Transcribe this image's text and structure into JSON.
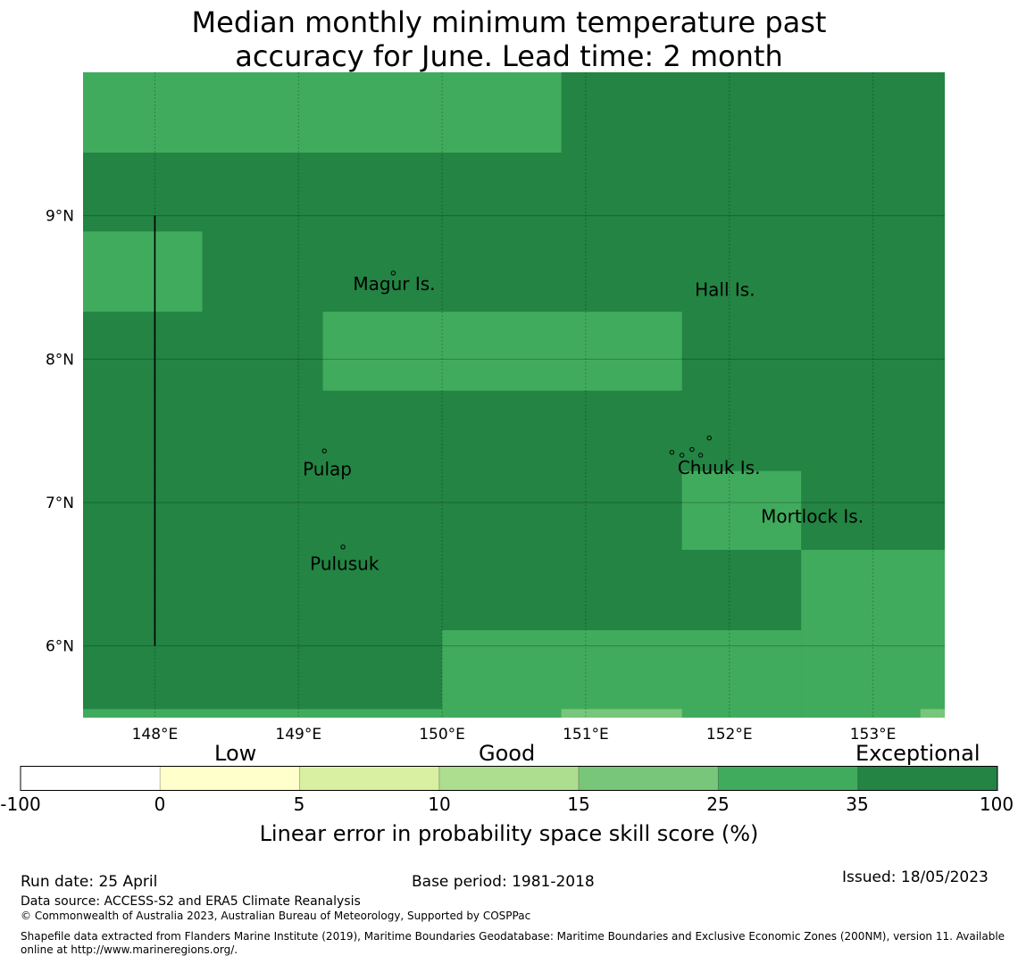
{
  "title_line1": "Median monthly minimum temperature past",
  "title_line2": "accuracy for June. Lead time: 2 month",
  "map": {
    "lon_range": [
      147.5,
      153.5
    ],
    "lat_range": [
      5.5,
      10.0
    ],
    "lon_ticks": [
      {
        "value": 148,
        "label": "148°E"
      },
      {
        "value": 149,
        "label": "149°E"
      },
      {
        "value": 150,
        "label": "150°E"
      },
      {
        "value": 151,
        "label": "151°E"
      },
      {
        "value": 152,
        "label": "152°E"
      },
      {
        "value": 153,
        "label": "153°E"
      }
    ],
    "lat_ticks": [
      {
        "value": 9,
        "label": "9°N"
      },
      {
        "value": 8,
        "label": "8°N"
      },
      {
        "value": 7,
        "label": "7°N"
      },
      {
        "value": 6,
        "label": "6°N"
      }
    ],
    "background_color": "#238443",
    "cells": [
      {
        "lon": [
          147.5,
          150.83
        ],
        "lat": [
          9.44,
          10.0
        ],
        "color": "#41ab5d"
      },
      {
        "lon": [
          147.5,
          148.33
        ],
        "lat": [
          8.33,
          8.89
        ],
        "color": "#41ab5d"
      },
      {
        "lon": [
          149.17,
          151.67
        ],
        "lat": [
          7.78,
          8.33
        ],
        "color": "#41ab5d"
      },
      {
        "lon": [
          151.67,
          152.5
        ],
        "lat": [
          6.67,
          7.22
        ],
        "color": "#41ab5d"
      },
      {
        "lon": [
          152.5,
          153.5
        ],
        "lat": [
          5.5,
          6.67
        ],
        "color": "#41ab5d"
      },
      {
        "lon": [
          150.0,
          152.5
        ],
        "lat": [
          5.5,
          6.11
        ],
        "color": "#41ab5d"
      },
      {
        "lon": [
          147.5,
          150.0
        ],
        "lat": [
          5.5,
          5.56
        ],
        "color": "#41ab5d"
      },
      {
        "lon": [
          150.83,
          151.67
        ],
        "lat": [
          5.5,
          5.56
        ],
        "color": "#78c679"
      },
      {
        "lon": [
          153.33,
          153.5
        ],
        "lat": [
          5.5,
          5.56
        ],
        "color": "#78c679"
      }
    ],
    "boundary_line": {
      "lon": 148.0,
      "lat": [
        6.0,
        9.0
      ]
    },
    "places": [
      {
        "name": "Magur Is.",
        "lon": 149.38,
        "lat": 8.48
      },
      {
        "name": "Hall Is.",
        "lon": 151.76,
        "lat": 8.44
      },
      {
        "name": "Pulap",
        "lon": 149.03,
        "lat": 7.19
      },
      {
        "name": "Chuuk Is.",
        "lon": 151.64,
        "lat": 7.2
      },
      {
        "name": "Mortlock Is.",
        "lon": 152.22,
        "lat": 6.86
      },
      {
        "name": "Pulusuk",
        "lon": 149.08,
        "lat": 6.53
      }
    ],
    "islands": [
      {
        "lon": 149.66,
        "lat": 8.6
      },
      {
        "lon": 149.18,
        "lat": 7.36
      },
      {
        "lon": 151.6,
        "lat": 7.35
      },
      {
        "lon": 151.67,
        "lat": 7.33
      },
      {
        "lon": 151.74,
        "lat": 7.37
      },
      {
        "lon": 151.8,
        "lat": 7.33
      },
      {
        "lon": 151.86,
        "lat": 7.45
      },
      {
        "lon": 149.31,
        "lat": 6.69
      }
    ]
  },
  "colorbar": {
    "category_labels": [
      "Low",
      "Good",
      "Exceptional"
    ],
    "tick_labels": [
      "-100",
      "0",
      "5",
      "10",
      "15",
      "25",
      "35",
      "100"
    ],
    "colors": [
      "#ffffff",
      "#ffffcc",
      "#d9f0a3",
      "#addd8e",
      "#78c679",
      "#41ab5d",
      "#238443"
    ],
    "axis_label": "Linear error in probability space skill score (%)"
  },
  "footer": {
    "run_date": "Run date: 25 April",
    "base_period": "Base period: 1981-2018",
    "issued": "Issued: 18/05/2023",
    "data_source": "Data source: ACCESS-S2 and ERA5 Climate Reanalysis",
    "copyright": "© Commonwealth of Australia 2023, Australian Bureau of Meteorology, Supported by COSPPac",
    "shapefile_line1": "Shapefile data extracted from Flanders Marine Institute (2019), Maritime Boundaries Geodatabase: Maritime Boundaries and Exclusive Economic Zones (200NM), version 11. Available",
    "shapefile_line2": "online at http://www.marineregions.org/."
  }
}
